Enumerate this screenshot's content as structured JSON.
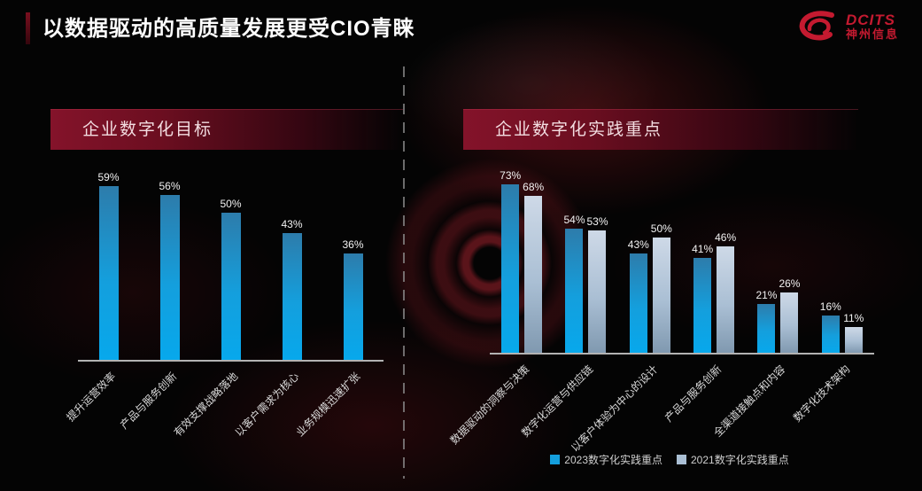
{
  "title": "以数据驱动的高质量发展更受CIO青睐",
  "logo": {
    "brand": "DCITS",
    "company": "神州信息"
  },
  "colors": {
    "accent_red": "#84132a",
    "logo_red": "#c41a30",
    "bar_blue": "#149fdd",
    "bar_gray": "#aabfd4",
    "axis": "#b3b3b3"
  },
  "chart_data": [
    {
      "type": "bar",
      "title": "企业数字化目标",
      "categories": [
        "提升运营效率",
        "产品与服务创新",
        "有效支撑战略落地",
        "以客户需求为核心",
        "业务规模迅速扩张"
      ],
      "values": [
        59,
        56,
        50,
        43,
        36
      ],
      "value_labels": [
        "59%",
        "56%",
        "50%",
        "43%",
        "36%"
      ],
      "xlabel": "",
      "ylabel": "",
      "ylim": [
        0,
        100
      ],
      "grid": false,
      "legend_position": "none"
    },
    {
      "type": "bar",
      "title": "企业数字化实践重点",
      "categories": [
        "数据驱动的洞察与决策",
        "数字化运营与供应链",
        "以客户体验为中心的设计",
        "产品与服务创新",
        "全渠道接触点和内容",
        "数字化技术架构"
      ],
      "series": [
        {
          "name": "2023数字化实践重点",
          "color": "#149fdd",
          "values": [
            73,
            54,
            43,
            41,
            21,
            16
          ],
          "value_labels": [
            "73%",
            "54%",
            "43%",
            "41%",
            "21%",
            "16%"
          ]
        },
        {
          "name": "2021数字化实践重点",
          "color": "#aabfd4",
          "values": [
            68,
            53,
            50,
            46,
            26,
            11
          ],
          "value_labels": [
            "68%",
            "53%",
            "50%",
            "46%",
            "26%",
            "11%"
          ]
        }
      ],
      "xlabel": "",
      "ylabel": "",
      "ylim": [
        0,
        100
      ],
      "grid": false,
      "legend_position": "bottom"
    }
  ]
}
